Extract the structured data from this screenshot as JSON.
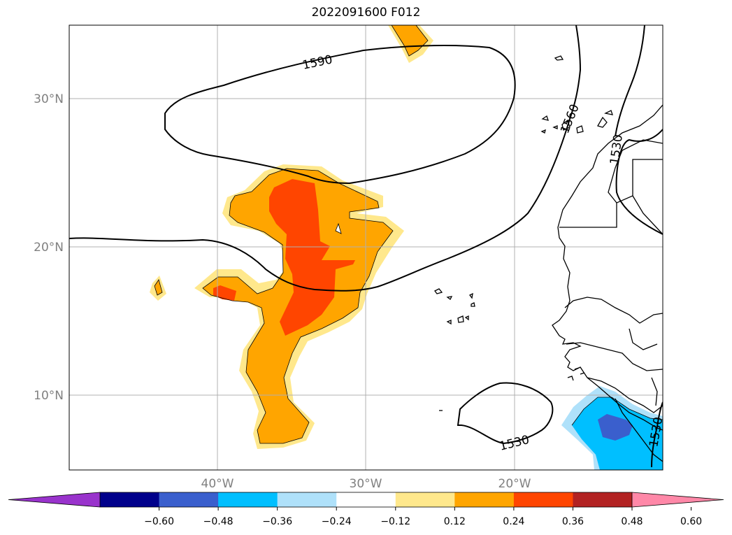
{
  "title": "2022091600 F012",
  "lat_labels": [
    "30°N",
    "20°N",
    "10°N"
  ],
  "lon_labels": [
    "40°W",
    "30°W",
    "20°W"
  ],
  "contour_labels": [
    "1590",
    "1560",
    "1530",
    "1530",
    "1530"
  ],
  "colorbar": {
    "ticks": [
      "−0.60",
      "−0.48",
      "−0.36",
      "−0.24",
      "−0.12",
      "0.12",
      "0.24",
      "0.36",
      "0.48",
      "0.60"
    ],
    "colors": [
      "#9933cc",
      "#00008b",
      "#3a5fcd",
      "#00bfff",
      "#afe1fa",
      "#ffffff",
      "#ffe88c",
      "#ffa500",
      "#ff4500",
      "#b22222",
      "#ff88a8"
    ]
  },
  "colors": {
    "light_yellow": "#ffe88c",
    "orange": "#ffa500",
    "red_orange": "#ff4500",
    "sky_blue": "#00bfff",
    "light_blue": "#afe1fa",
    "royal_blue": "#3a5fcd",
    "gridline": "#b0b0b0"
  }
}
